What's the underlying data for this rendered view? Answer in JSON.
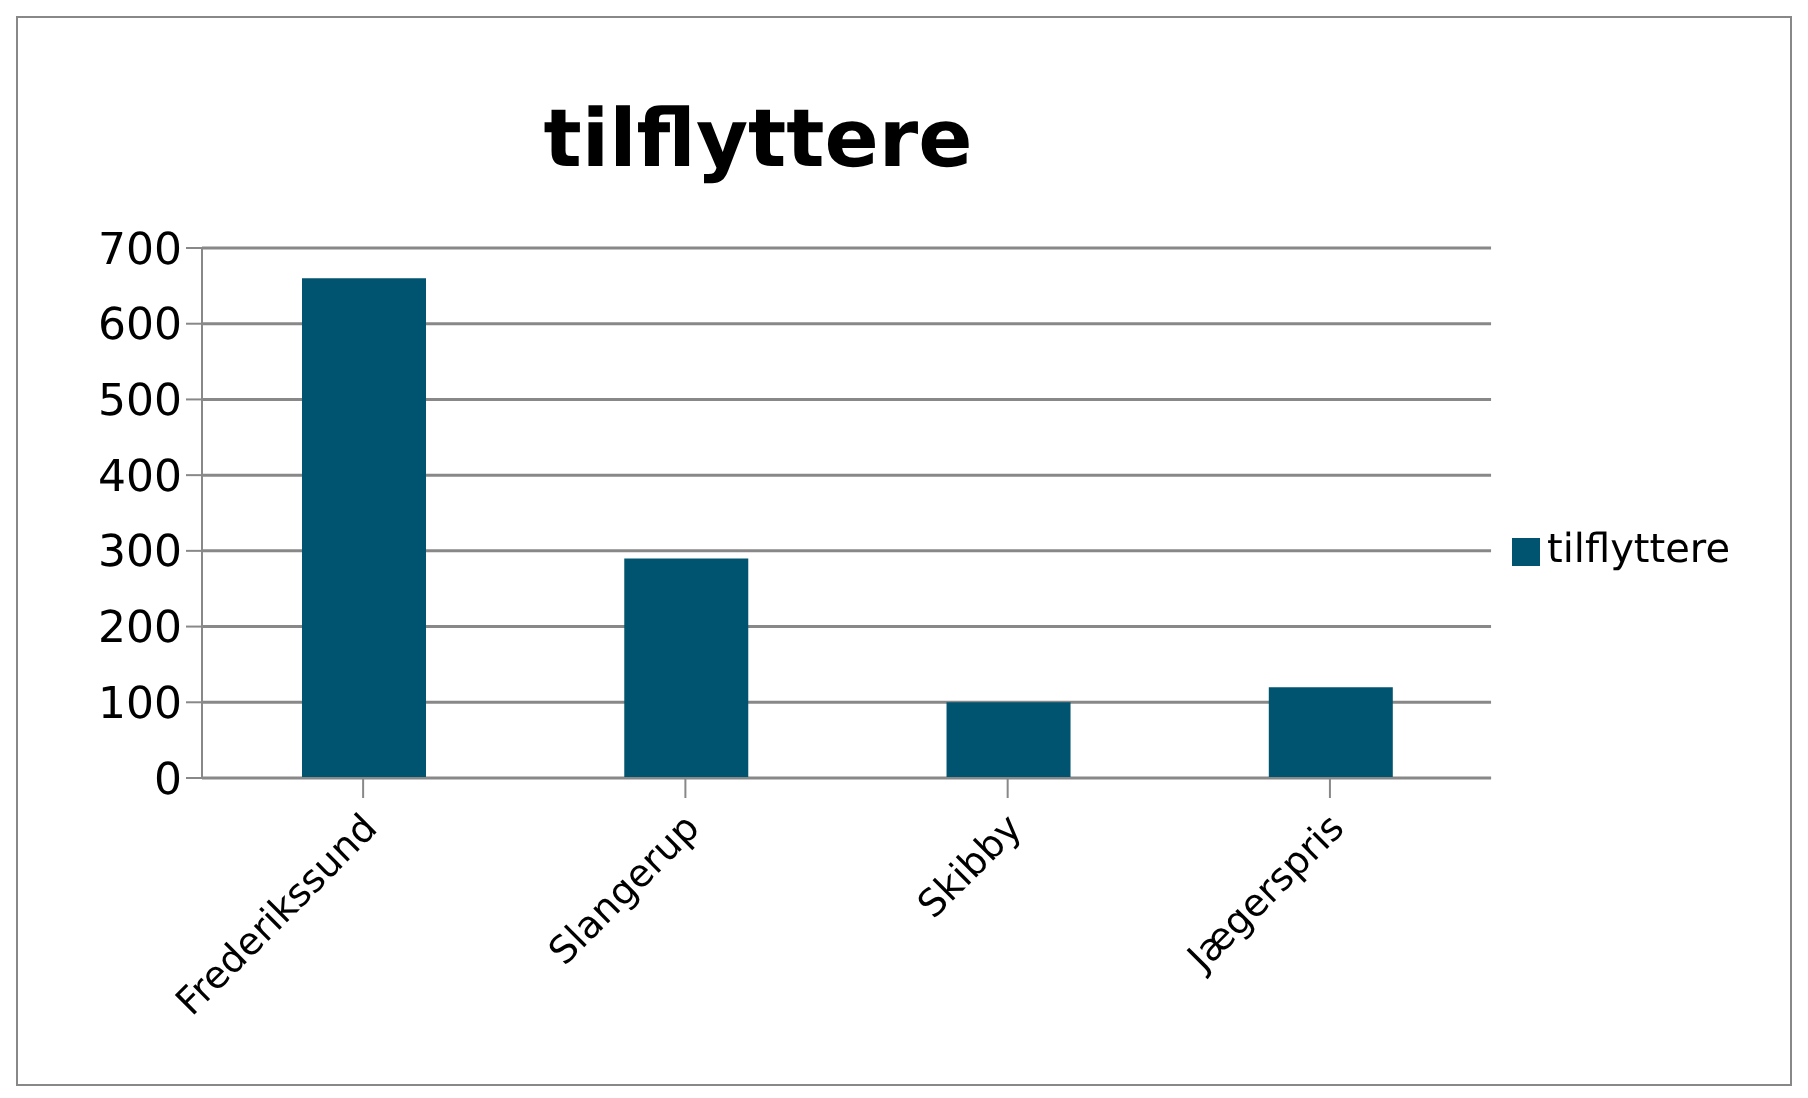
{
  "chart_data": {
    "type": "bar",
    "title": "tilflyttere",
    "categories": [
      "Frederikssund",
      "Slangerup",
      "Skibby",
      "Jægerspris"
    ],
    "series": [
      {
        "name": "tilflyttere",
        "color": "#00546f",
        "values": [
          660,
          290,
          100,
          120
        ]
      }
    ],
    "ylim": [
      0,
      700
    ],
    "yticks": [
      0,
      100,
      200,
      300,
      400,
      500,
      600,
      700
    ],
    "grid": "y",
    "legend": "right"
  }
}
